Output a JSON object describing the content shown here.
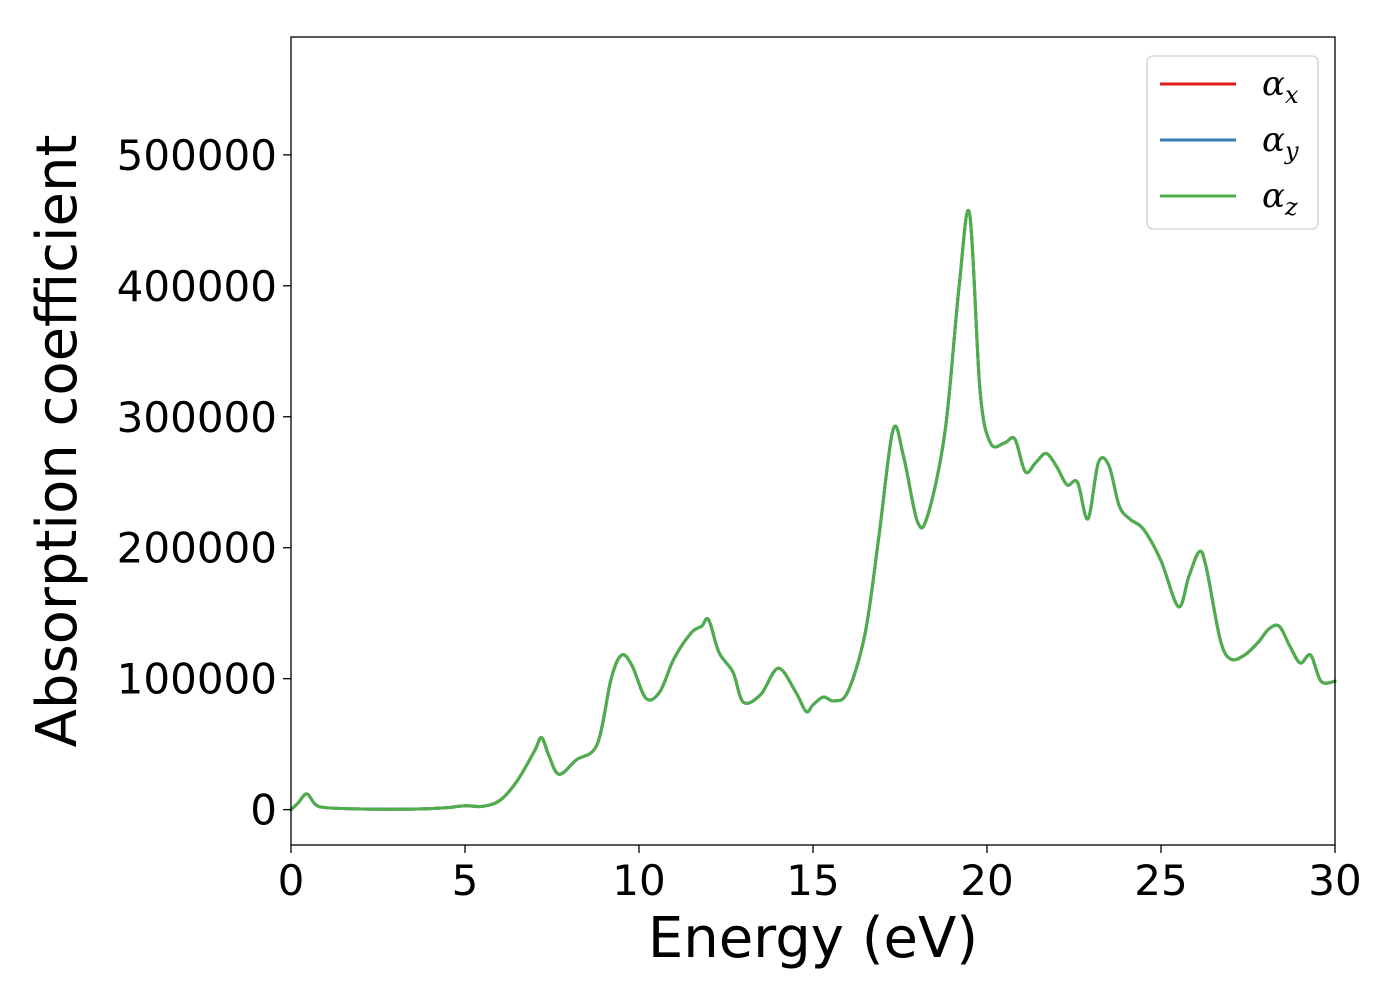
{
  "chart_data": {
    "type": "line",
    "xlabel": "Energy (eV)",
    "ylabel": "Absorption coefficient",
    "xlim": [
      0,
      30
    ],
    "ylim": [
      -27000,
      590000
    ],
    "xticks": [
      0,
      5,
      10,
      15,
      20,
      25,
      30
    ],
    "xtick_labels": [
      "0",
      "5",
      "10",
      "15",
      "20",
      "25",
      "30"
    ],
    "yticks": [
      0,
      100000,
      200000,
      300000,
      400000,
      500000
    ],
    "ytick_labels": [
      "0",
      "100000",
      "200000",
      "300000",
      "400000",
      "500000"
    ],
    "grid": false,
    "legend_position": "top-right",
    "series_shape": {
      "x": [
        0,
        0.2,
        0.45,
        0.7,
        1.0,
        2.0,
        3.0,
        4.0,
        4.5,
        5.0,
        5.5,
        6.0,
        6.5,
        7.0,
        7.2,
        7.4,
        7.7,
        8.2,
        8.8,
        9.2,
        9.5,
        9.8,
        10.2,
        10.6,
        11.0,
        11.5,
        11.8,
        12.0,
        12.3,
        12.7,
        13.0,
        13.5,
        14.0,
        14.5,
        14.8,
        15.0,
        15.3,
        15.6,
        16.0,
        16.5,
        16.9,
        17.3,
        17.6,
        18.0,
        18.3,
        18.8,
        19.2,
        19.5,
        19.8,
        20.1,
        20.5,
        20.8,
        21.1,
        21.4,
        21.7,
        22.0,
        22.3,
        22.6,
        22.9,
        23.2,
        23.5,
        23.8,
        24.1,
        24.5,
        25.0,
        25.5,
        25.8,
        26.1,
        26.3,
        26.7,
        27.0,
        27.4,
        27.8,
        28.1,
        28.4,
        28.7,
        29.0,
        29.3,
        29.6,
        30.0
      ],
      "y": [
        0,
        5000,
        12000,
        4000,
        1500,
        500,
        300,
        800,
        1500,
        3000,
        2500,
        7000,
        22000,
        45000,
        55000,
        42000,
        27000,
        38000,
        50000,
        100000,
        118000,
        110000,
        85000,
        90000,
        115000,
        135000,
        140000,
        145000,
        120000,
        105000,
        82000,
        88000,
        108000,
        90000,
        75000,
        80000,
        86000,
        83000,
        90000,
        135000,
        210000,
        290000,
        270000,
        220000,
        225000,
        290000,
        400000,
        455000,
        320000,
        280000,
        280000,
        283000,
        258000,
        265000,
        272000,
        262000,
        248000,
        250000,
        222000,
        265000,
        263000,
        232000,
        222000,
        214000,
        190000,
        155000,
        178000,
        197000,
        185000,
        130000,
        115000,
        118000,
        128000,
        138000,
        140000,
        125000,
        112000,
        118000,
        98000,
        98000
      ]
    },
    "series": [
      {
        "name": "α_x",
        "label_main": "α",
        "label_sub": "x",
        "color": "#e41a1c"
      },
      {
        "name": "α_y",
        "label_main": "α",
        "label_sub": "y",
        "color": "#377eb8"
      },
      {
        "name": "α_z",
        "label_main": "α",
        "label_sub": "z",
        "color": "#4daf4a"
      }
    ]
  }
}
